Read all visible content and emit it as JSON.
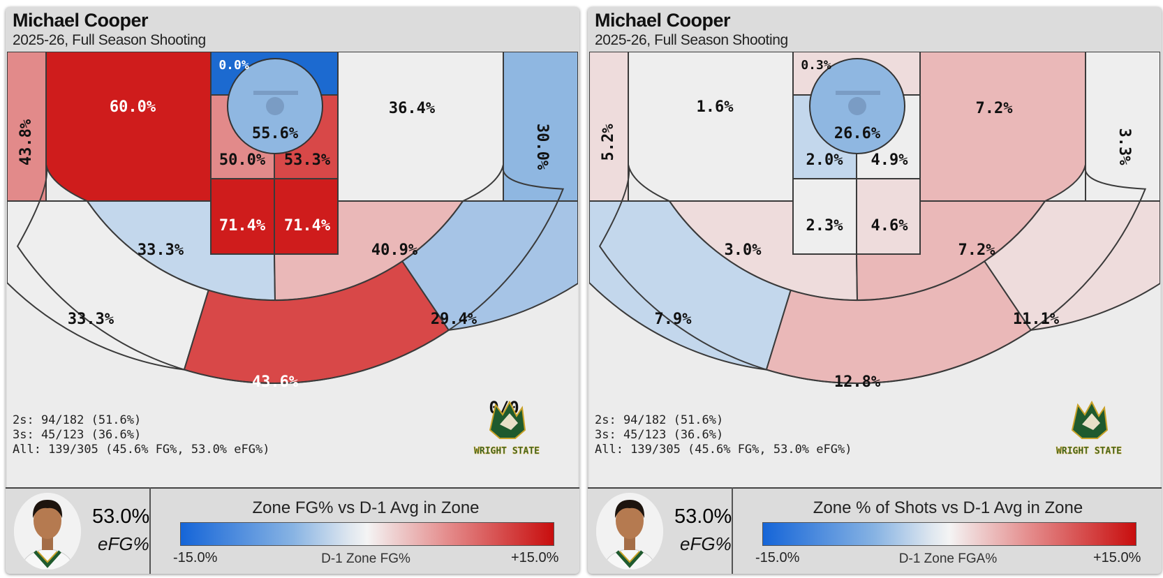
{
  "colors": {
    "red_strong": "#cf1c1c",
    "red_med": "#d84848",
    "red_light": "#e28a8a",
    "red_pale": "#eab8b8",
    "red_faint": "#eedcdc",
    "neutral": "#eeeeee",
    "blue_pale": "#c3d7ec",
    "blue_light": "#a6c4e6",
    "blue_med": "#8fb7e1",
    "blue_strong": "#1c6ad0"
  },
  "panels": [
    {
      "player_name": "Michael Cooper",
      "subtitle": "2025-26, Full Season Shooting",
      "efg_value": "53.0%",
      "efg_label": "eFG%",
      "legend_title": "Zone FG% vs D-1 Avg in Zone",
      "legend_min": "-15.0%",
      "legend_mid": "D-1 Zone FG%",
      "legend_max": "+15.0%",
      "overlay_text": "0/0",
      "logo_text": "WRIGHT STATE",
      "stats": [
        "2s: 94/182 (51.6%)",
        "3s: 45/123 (36.6%)",
        "All: 139/305 (45.6% FG%, 53.0% eFG%)"
      ]
    },
    {
      "player_name": "Michael Cooper",
      "subtitle": "2025-26, Full Season Shooting",
      "efg_value": "53.0%",
      "efg_label": "eFG%",
      "legend_title": "Zone % of Shots vs D-1 Avg in Zone",
      "legend_min": "-15.0%",
      "legend_mid": "D-1 Zone FGA%",
      "legend_max": "+15.0%",
      "overlay_text": "",
      "logo_text": "WRIGHT STATE",
      "stats": [
        "2s: 94/182 (51.6%)",
        "3s: 45/123 (36.6%)",
        "All: 139/305 (45.6% FG%, 53.0% eFG%)"
      ]
    }
  ],
  "chart_data": [
    {
      "type": "heatmap",
      "title": "Michael Cooper",
      "subtitle": "2025-26, Full Season Shooting",
      "value_type": "zone FG%",
      "colorbar": {
        "label": "D-1 Zone FG%",
        "title": "Zone FG% vs D-1 Avg in Zone",
        "range": [
          -15.0,
          15.0
        ],
        "min_label": "-15.0%",
        "max_label": "+15.0%"
      },
      "zones": [
        {
          "zone": "left-corner-3",
          "value": 43.8,
          "label": "43.8%",
          "color": "red_light"
        },
        {
          "zone": "left-baseline-2",
          "value": 60.0,
          "label": "60.0%",
          "color": "red_strong"
        },
        {
          "zone": "paint-top-left",
          "value": 0.0,
          "label": "0.0%",
          "color": "blue_strong"
        },
        {
          "zone": "restricted-area",
          "value": 55.6,
          "label": "55.6%",
          "color": "blue_med"
        },
        {
          "zone": "paint-mid-left",
          "value": 50.0,
          "label": "50.0%",
          "color": "red_light"
        },
        {
          "zone": "paint-mid-right",
          "value": 53.3,
          "label": "53.3%",
          "color": "red_med"
        },
        {
          "zone": "paint-low-left",
          "value": 71.4,
          "label": "71.4%",
          "color": "red_strong"
        },
        {
          "zone": "paint-low-right",
          "value": 71.4,
          "label": "71.4%",
          "color": "red_strong"
        },
        {
          "zone": "right-baseline-2",
          "value": 36.4,
          "label": "36.4%",
          "color": "neutral"
        },
        {
          "zone": "right-corner-3",
          "value": 30.0,
          "label": "30.0%",
          "color": "blue_med"
        },
        {
          "zone": "left-elbow-2",
          "value": 33.3,
          "label": "33.3%",
          "color": "blue_pale"
        },
        {
          "zone": "right-elbow-2",
          "value": 40.9,
          "label": "40.9%",
          "color": "red_pale"
        },
        {
          "zone": "left-wing-3",
          "value": 33.3,
          "label": "33.3%",
          "color": "neutral"
        },
        {
          "zone": "top-key-3",
          "value": 43.6,
          "label": "43.6%",
          "color": "red_med"
        },
        {
          "zone": "right-wing-3",
          "value": 29.4,
          "label": "29.4%",
          "color": "blue_light"
        }
      ]
    },
    {
      "type": "heatmap",
      "title": "Michael Cooper",
      "subtitle": "2025-26, Full Season Shooting",
      "value_type": "zone % of shots",
      "colorbar": {
        "label": "D-1 Zone FGA%",
        "title": "Zone % of Shots vs D-1 Avg in Zone",
        "range": [
          -15.0,
          15.0
        ],
        "min_label": "-15.0%",
        "max_label": "+15.0%"
      },
      "zones": [
        {
          "zone": "left-corner-3",
          "value": 5.2,
          "label": "5.2%",
          "color": "red_faint"
        },
        {
          "zone": "left-baseline-2",
          "value": 1.6,
          "label": "1.6%",
          "color": "neutral"
        },
        {
          "zone": "paint-top-left",
          "value": 0.3,
          "label": "0.3%",
          "color": "red_faint"
        },
        {
          "zone": "restricted-area",
          "value": 26.6,
          "label": "26.6%",
          "color": "blue_med"
        },
        {
          "zone": "paint-mid-left",
          "value": 2.0,
          "label": "2.0%",
          "color": "blue_pale"
        },
        {
          "zone": "paint-mid-right",
          "value": 4.9,
          "label": "4.9%",
          "color": "neutral"
        },
        {
          "zone": "paint-low-left",
          "value": 2.3,
          "label": "2.3%",
          "color": "neutral"
        },
        {
          "zone": "paint-low-right",
          "value": 4.6,
          "label": "4.6%",
          "color": "red_faint"
        },
        {
          "zone": "right-baseline-2",
          "value": 7.2,
          "label": "7.2%",
          "color": "red_pale"
        },
        {
          "zone": "right-corner-3",
          "value": 3.3,
          "label": "3.3%",
          "color": "neutral"
        },
        {
          "zone": "left-elbow-2",
          "value": 3.0,
          "label": "3.0%",
          "color": "red_faint"
        },
        {
          "zone": "right-elbow-2",
          "value": 7.2,
          "label": "7.2%",
          "color": "red_pale"
        },
        {
          "zone": "left-wing-3",
          "value": 7.9,
          "label": "7.9%",
          "color": "blue_pale"
        },
        {
          "zone": "top-key-3",
          "value": 12.8,
          "label": "12.8%",
          "color": "red_pale"
        },
        {
          "zone": "right-wing-3",
          "value": 11.1,
          "label": "11.1%",
          "color": "red_faint"
        }
      ]
    }
  ]
}
